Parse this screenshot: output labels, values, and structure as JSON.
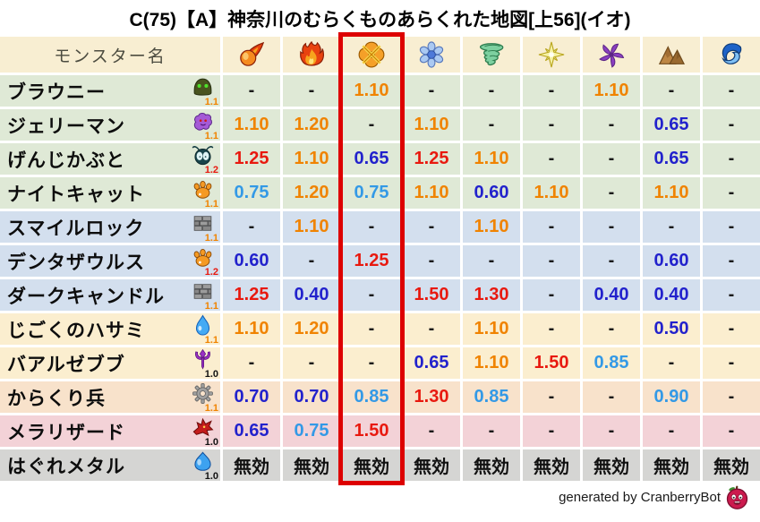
{
  "title": "C(75)【A】神奈川のむらくものあらくれた地図[上56](イオ)",
  "footer": {
    "credit": "generated by CranberryBot",
    "bot_icon": "cranberrybot-icon"
  },
  "table": {
    "name_header": "モンスター名",
    "immune_label": "無効",
    "columns": [
      {
        "id": "fire",
        "icon": "fireball-icon"
      },
      {
        "id": "blaze",
        "icon": "flame-icon"
      },
      {
        "id": "explosion",
        "icon": "explosion-icon",
        "highlighted": true
      },
      {
        "id": "ice",
        "icon": "snowflake-icon"
      },
      {
        "id": "wind",
        "icon": "tornado-icon"
      },
      {
        "id": "light",
        "icon": "spark-icon"
      },
      {
        "id": "dark",
        "icon": "pinwheel-icon"
      },
      {
        "id": "earth",
        "icon": "mountain-icon"
      },
      {
        "id": "water",
        "icon": "wave-icon"
      }
    ],
    "rows": [
      {
        "name": "ブラウニー",
        "family_icon": "helmet-icon",
        "multiplier": "1.1",
        "family": "green",
        "values": [
          "-",
          "-",
          "1.10",
          "-",
          "-",
          "-",
          "1.10",
          "-",
          "-"
        ]
      },
      {
        "name": "ジェリーマン",
        "family_icon": "jelly-icon",
        "multiplier": "1.1",
        "family": "green",
        "values": [
          "1.10",
          "1.20",
          "-",
          "1.10",
          "-",
          "-",
          "-",
          "0.65",
          "-"
        ]
      },
      {
        "name": "げんじかぶと",
        "family_icon": "bug-icon",
        "multiplier": "1.2",
        "family": "green",
        "values": [
          "1.25",
          "1.10",
          "0.65",
          "1.25",
          "1.10",
          "-",
          "-",
          "0.65",
          "-"
        ]
      },
      {
        "name": "ナイトキャット",
        "family_icon": "paw-icon",
        "multiplier": "1.1",
        "family": "green",
        "values": [
          "0.75",
          "1.20",
          "0.75",
          "1.10",
          "0.60",
          "1.10",
          "-",
          "1.10",
          "-"
        ]
      },
      {
        "name": "スマイルロック",
        "family_icon": "brick-icon",
        "multiplier": "1.1",
        "family": "blue",
        "values": [
          "-",
          "1.10",
          "-",
          "-",
          "1.10",
          "-",
          "-",
          "-",
          "-"
        ]
      },
      {
        "name": "デンタザウルス",
        "family_icon": "paw-icon",
        "multiplier": "1.2",
        "family": "blue",
        "values": [
          "0.60",
          "-",
          "1.25",
          "-",
          "-",
          "-",
          "-",
          "0.60",
          "-"
        ]
      },
      {
        "name": "ダークキャンドル",
        "family_icon": "brick-icon",
        "multiplier": "1.1",
        "family": "blue",
        "values": [
          "1.25",
          "0.40",
          "-",
          "1.50",
          "1.30",
          "-",
          "0.40",
          "0.40",
          "-"
        ]
      },
      {
        "name": "じごくのハサミ",
        "family_icon": "droplet-icon",
        "multiplier": "1.1",
        "family": "cream",
        "values": [
          "1.10",
          "1.20",
          "-",
          "-",
          "1.10",
          "-",
          "-",
          "0.50",
          "-"
        ]
      },
      {
        "name": "バアルゼブブ",
        "family_icon": "trident-icon",
        "multiplier": "1.0",
        "family": "cream",
        "values": [
          "-",
          "-",
          "-",
          "0.65",
          "1.10",
          "1.50",
          "0.85",
          "-",
          "-"
        ]
      },
      {
        "name": "からくり兵",
        "family_icon": "gear-icon",
        "multiplier": "1.1",
        "family": "peach",
        "values": [
          "0.70",
          "0.70",
          "0.85",
          "1.30",
          "0.85",
          "-",
          "-",
          "0.90",
          "-"
        ]
      },
      {
        "name": "メラリザード",
        "family_icon": "dragon-icon",
        "multiplier": "1.0",
        "family": "pink",
        "values": [
          "0.65",
          "0.75",
          "1.50",
          "-",
          "-",
          "-",
          "-",
          "-",
          "-"
        ]
      },
      {
        "name": "はぐれメタル",
        "family_icon": "slime-icon",
        "multiplier": "1.0",
        "family": "gray",
        "values": [
          "無効",
          "無効",
          "無効",
          "無効",
          "無効",
          "無効",
          "無効",
          "無効",
          "無効"
        ]
      }
    ]
  },
  "colors": {
    "highlight_box": "#dd0000",
    "value_up_strong": "#e8190f",
    "value_up": "#f08300",
    "value_down_strong": "#2222cc",
    "value_down": "#3399e6",
    "value_neutral": "#1a1a1a",
    "header_bg": "#f8eed2",
    "row_green": "#dfe9d6",
    "row_blue": "#d3dfee",
    "row_cream": "#fbeecf",
    "row_peach": "#f8e2cb",
    "row_pink": "#f3d2d7",
    "row_gray": "#d5d5d3"
  }
}
